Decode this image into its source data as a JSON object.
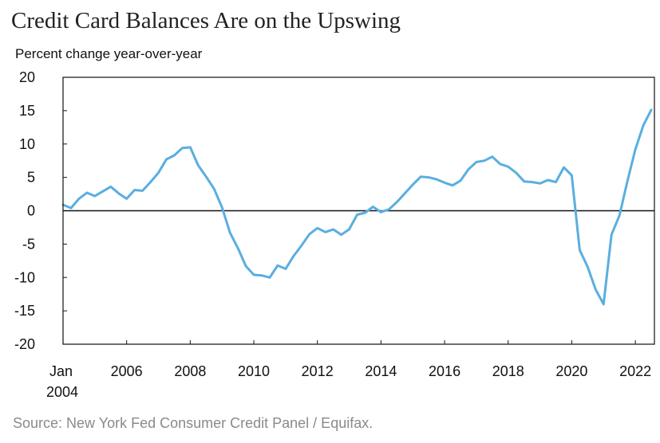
{
  "chart_data": {
    "type": "line",
    "title": "Credit Card Balances Are on the Upswing",
    "subtitle": "Percent change year-over-year",
    "source": "Source: New York Fed Consumer Credit Panel / Equifax.",
    "xlim": [
      2004,
      2022.6
    ],
    "ylim": [
      -20,
      20
    ],
    "y_ticks": [
      {
        "value": 20,
        "label": "20"
      },
      {
        "value": 15,
        "label": "15"
      },
      {
        "value": 10,
        "label": "10"
      },
      {
        "value": 5,
        "label": "5"
      },
      {
        "value": 0,
        "label": "0"
      },
      {
        "value": -5,
        "label": "-5"
      },
      {
        "value": -10,
        "label": "-10"
      },
      {
        "value": -15,
        "label": "-15"
      },
      {
        "value": -20,
        "label": "-20"
      }
    ],
    "x_ticks": [
      {
        "value": 2004,
        "label": "Jan",
        "label2": "2004"
      },
      {
        "value": 2006,
        "label": "2006"
      },
      {
        "value": 2008,
        "label": "2008"
      },
      {
        "value": 2010,
        "label": "2010"
      },
      {
        "value": 2012,
        "label": "2012"
      },
      {
        "value": 2014,
        "label": "2014"
      },
      {
        "value": 2016,
        "label": "2016"
      },
      {
        "value": 2018,
        "label": "2018"
      },
      {
        "value": 2020,
        "label": "2020"
      },
      {
        "value": 2022,
        "label": "2022"
      }
    ],
    "grid": false,
    "zero_line": true,
    "series": [
      {
        "color": "#5aaee0",
        "x": [
          2004.0,
          2004.25,
          2004.5,
          2004.75,
          2005.0,
          2005.25,
          2005.5,
          2005.75,
          2006.0,
          2006.25,
          2006.5,
          2006.75,
          2007.0,
          2007.25,
          2007.5,
          2007.75,
          2008.0,
          2008.25,
          2008.5,
          2008.75,
          2009.0,
          2009.25,
          2009.5,
          2009.75,
          2010.0,
          2010.25,
          2010.5,
          2010.75,
          2011.0,
          2011.25,
          2011.5,
          2011.75,
          2012.0,
          2012.25,
          2012.5,
          2012.75,
          2013.0,
          2013.25,
          2013.5,
          2013.75,
          2014.0,
          2014.25,
          2014.5,
          2014.75,
          2015.0,
          2015.25,
          2015.5,
          2015.75,
          2016.0,
          2016.25,
          2016.5,
          2016.75,
          2017.0,
          2017.25,
          2017.5,
          2017.75,
          2018.0,
          2018.25,
          2018.5,
          2018.75,
          2019.0,
          2019.25,
          2019.5,
          2019.75,
          2020.0,
          2020.25,
          2020.5,
          2020.75,
          2021.0,
          2021.25,
          2021.5,
          2021.75,
          2022.0,
          2022.25,
          2022.5
        ],
        "values": [
          0.9,
          0.4,
          1.8,
          2.7,
          2.2,
          2.9,
          3.6,
          2.6,
          1.8,
          3.1,
          3.0,
          4.3,
          5.7,
          7.7,
          8.3,
          9.4,
          9.5,
          6.8,
          5.1,
          3.3,
          0.5,
          -3.3,
          -5.6,
          -8.3,
          -9.6,
          -9.7,
          -10.0,
          -8.2,
          -8.7,
          -6.8,
          -5.2,
          -3.5,
          -2.6,
          -3.2,
          -2.8,
          -3.6,
          -2.8,
          -0.6,
          -0.3,
          0.6,
          -0.2,
          0.2,
          1.3,
          2.6,
          3.9,
          5.1,
          5.0,
          4.7,
          4.2,
          3.8,
          4.5,
          6.2,
          7.3,
          7.5,
          8.1,
          7.0,
          6.6,
          5.7,
          4.4,
          4.3,
          4.1,
          4.6,
          4.3,
          6.5,
          5.3,
          -5.9,
          -8.4,
          -11.8,
          -14.0,
          -3.6,
          -0.7,
          4.4,
          9.2,
          12.8,
          15.1
        ]
      }
    ]
  }
}
